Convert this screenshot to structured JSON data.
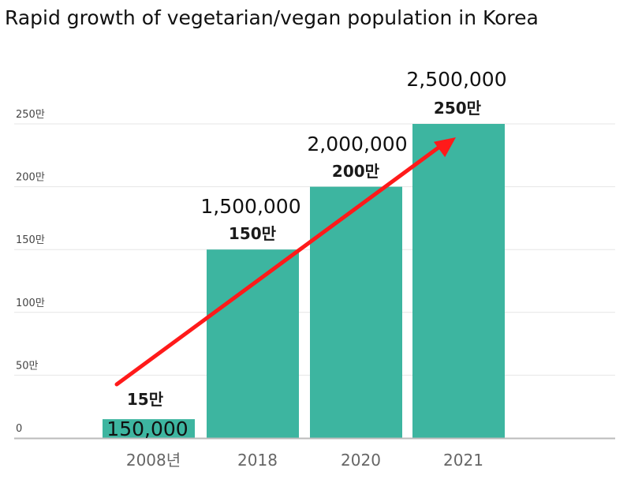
{
  "title": "Rapid growth of vegetarian/vegan population in Korea",
  "chart_data": {
    "type": "bar",
    "title": "Rapid growth of vegetarian/vegan population in Korea",
    "categories": [
      "2008년",
      "2018",
      "2020",
      "2021"
    ],
    "values": [
      15,
      150,
      200,
      250
    ],
    "unit": "만",
    "value_labels": [
      "15만",
      "150만",
      "200만",
      "250만"
    ],
    "annotations": [
      "150,000",
      "1,500,000",
      "2,000,000",
      "2,500,000"
    ],
    "ytick_values": [
      0,
      50,
      100,
      150,
      200,
      250
    ],
    "ytick_labels": [
      "0",
      "50만",
      "100만",
      "150만",
      "200만",
      "250만"
    ],
    "ylim": [
      0,
      250
    ],
    "grid": true,
    "trend_arrow": true,
    "bar_color": "#3db5a0",
    "arrow_color": "#ff1a1a"
  }
}
